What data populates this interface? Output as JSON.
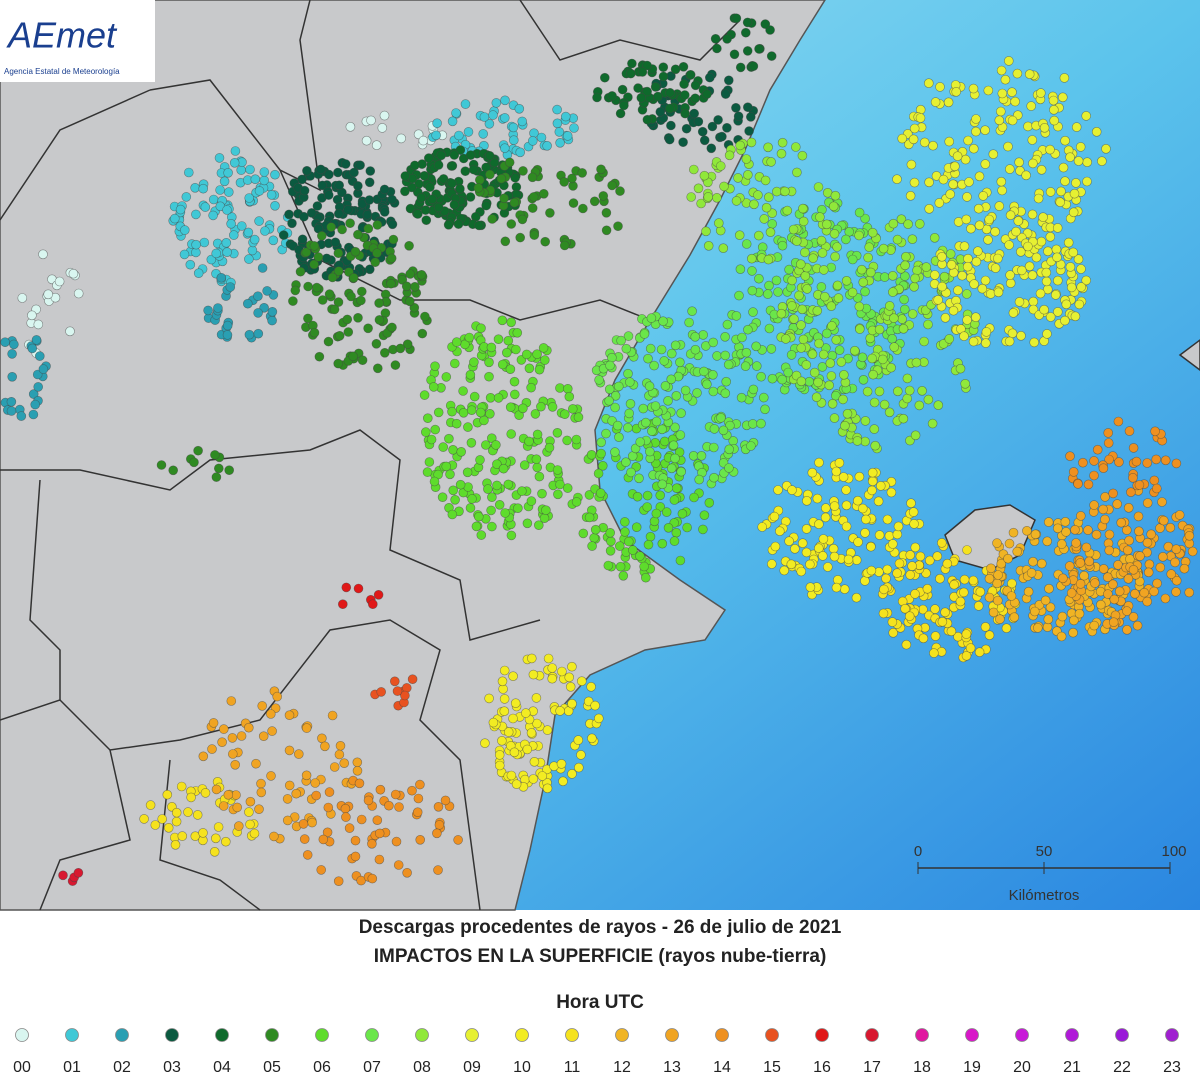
{
  "logo": {
    "name": "AEmet",
    "subtitle": "Agencia Estatal de Meteorología"
  },
  "scale": {
    "ticks": [
      "0",
      "50",
      "100"
    ],
    "unit": "Kilómetros"
  },
  "title": [
    "Descargas procedentes de rayos - 26 de julio de 2021",
    "IMPACTOS EN LA SUPERFICIE (rayos nube-tierra)"
  ],
  "legend": {
    "title": "Hora UTC",
    "items": [
      {
        "label": "00",
        "color": "#d9f6f0"
      },
      {
        "label": "01",
        "color": "#40c8d6"
      },
      {
        "label": "02",
        "color": "#2a9fb2"
      },
      {
        "label": "03",
        "color": "#0b5a40"
      },
      {
        "label": "04",
        "color": "#0f6a2c"
      },
      {
        "label": "05",
        "color": "#2f8a22"
      },
      {
        "label": "06",
        "color": "#5edc2c"
      },
      {
        "label": "07",
        "color": "#6ae64a"
      },
      {
        "label": "08",
        "color": "#90e83a"
      },
      {
        "label": "09",
        "color": "#e6f032"
      },
      {
        "label": "10",
        "color": "#f2ec22"
      },
      {
        "label": "11",
        "color": "#f5e21e"
      },
      {
        "label": "12",
        "color": "#f0b424"
      },
      {
        "label": "13",
        "color": "#f0a422"
      },
      {
        "label": "14",
        "color": "#ee9020"
      },
      {
        "label": "15",
        "color": "#e85220"
      },
      {
        "label": "16",
        "color": "#e01818"
      },
      {
        "label": "17",
        "color": "#d81830"
      },
      {
        "label": "18",
        "color": "#e018a0"
      },
      {
        "label": "19",
        "color": "#d818c8"
      },
      {
        "label": "20",
        "color": "#c81ad8"
      },
      {
        "label": "21",
        "color": "#b01ad8"
      },
      {
        "label": "22",
        "color": "#9a1ad8"
      },
      {
        "label": "23",
        "color": "#a020d0"
      }
    ]
  }
}
